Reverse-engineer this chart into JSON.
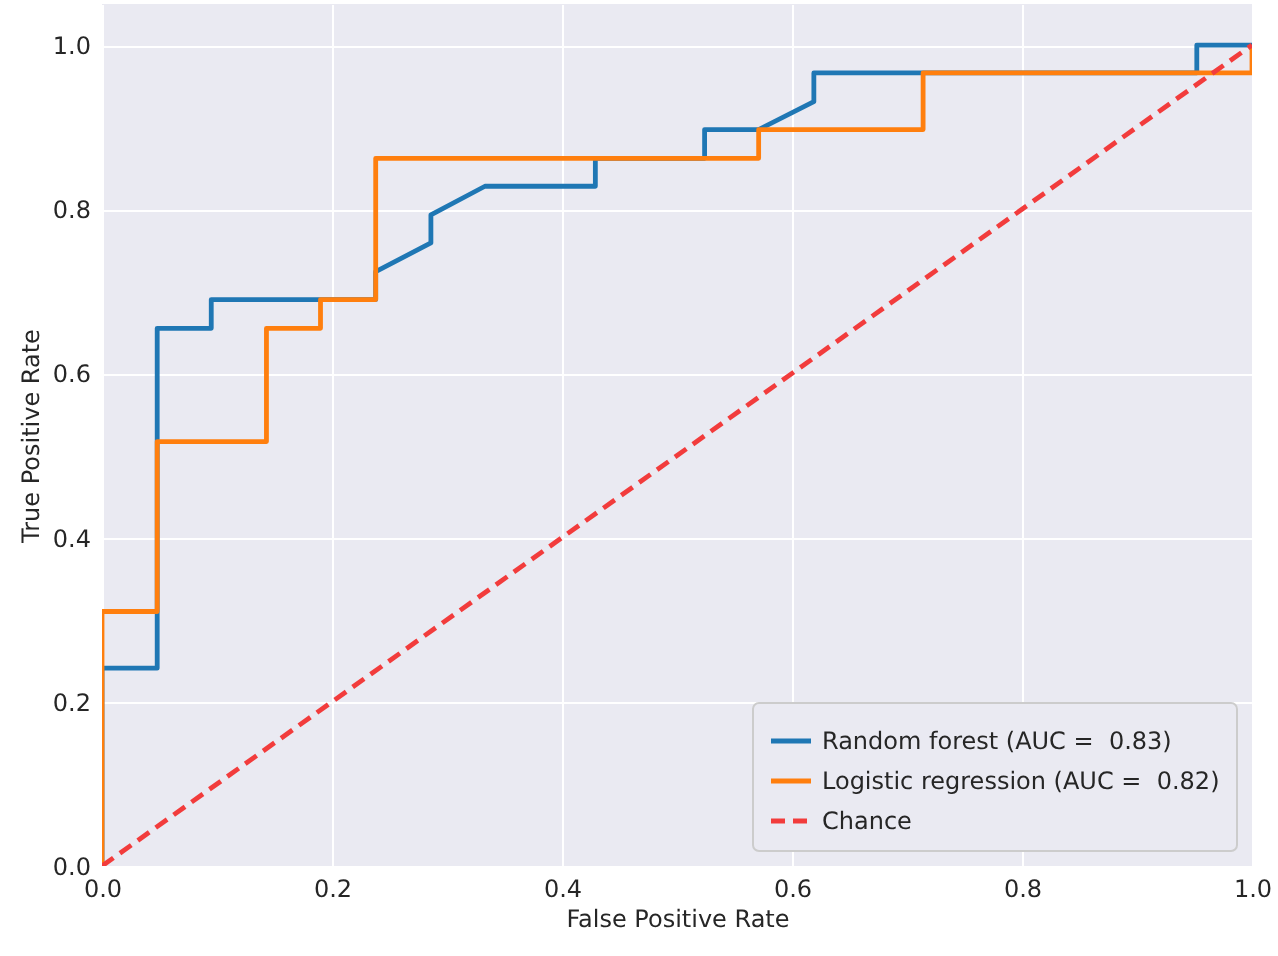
{
  "chart_data": {
    "type": "line",
    "xlabel": "False Positive Rate",
    "ylabel": "True Positive Rate",
    "xlim": [
      0,
      1
    ],
    "ylim": [
      0,
      1.05
    ],
    "xticks": [
      {
        "value": 0,
        "label": "0.0"
      },
      0.2,
      0.4,
      0.6,
      0.8,
      {
        "value": 1,
        "label": "1.0"
      }
    ],
    "yticks": [
      {
        "value": 0,
        "label": "0.0"
      },
      0.2,
      0.4,
      0.6,
      0.8,
      {
        "value": 1,
        "label": "1.0"
      }
    ],
    "grid": true,
    "legend": "bottom right",
    "marker": "none",
    "series": [
      {
        "name": "Random forest (AUC =  0.83)",
        "color": "#1f77b4",
        "line_style": "solid",
        "x": [
          0,
          0,
          0.048,
          0.048,
          0.095,
          0.095,
          0.238,
          0.238,
          0.286,
          0.286,
          0.333,
          0.429,
          0.429,
          0.524,
          0.524,
          0.571,
          0.619,
          0.619,
          0.952,
          0.952,
          1
        ],
        "values": [
          0,
          0.241,
          0.241,
          0.655,
          0.655,
          0.69,
          0.69,
          0.724,
          0.759,
          0.793,
          0.828,
          0.828,
          0.862,
          0.862,
          0.897,
          0.897,
          0.931,
          0.966,
          0.966,
          1,
          1
        ]
      },
      {
        "name": "Logistic regression (AUC =  0.82)",
        "color": "#ff7f0e",
        "line_style": "solid",
        "x": [
          0,
          0,
          0.048,
          0.048,
          0.143,
          0.143,
          0.19,
          0.19,
          0.238,
          0.238,
          0.571,
          0.571,
          0.714,
          0.714,
          1,
          1
        ],
        "values": [
          0,
          0.31,
          0.31,
          0.517,
          0.517,
          0.655,
          0.655,
          0.69,
          0.69,
          0.862,
          0.862,
          0.897,
          0.897,
          0.966,
          0.966,
          1
        ]
      },
      {
        "name": "Chance",
        "color": "#f23c3c",
        "line_style": "dashed",
        "x": [
          0,
          1
        ],
        "values": [
          0,
          1
        ]
      }
    ]
  }
}
